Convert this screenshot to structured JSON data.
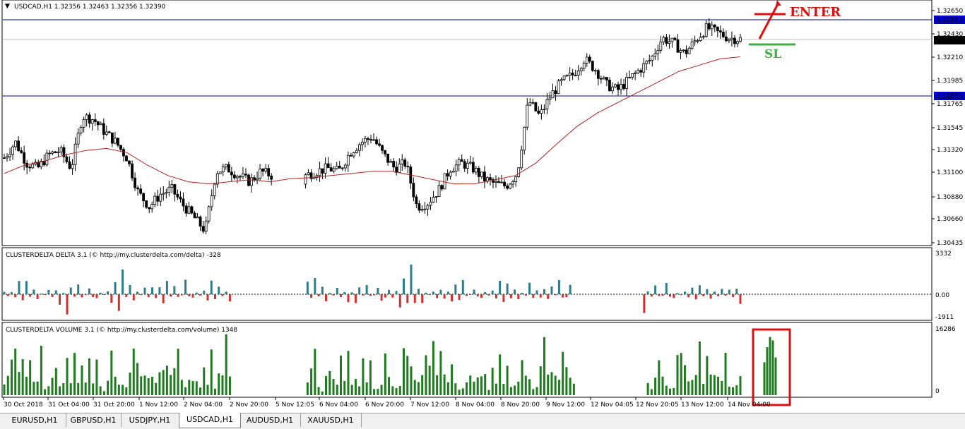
{
  "main": {
    "header": "USDCAD,H1  1.32356 1.32463 1.32356 1.32390",
    "price_labels": [
      "1.32650",
      "1.32430",
      "1.32210",
      "1.31985",
      "1.31765",
      "1.31545",
      "1.31320",
      "1.31100",
      "1.30880",
      "1.30660",
      "1.30435"
    ],
    "marker_labels": {
      "upper": "1.32580",
      "current": "1.32390",
      "lower": "1.31850"
    },
    "annotations": {
      "enter": "ENTER",
      "sl": "SL"
    }
  },
  "delta": {
    "header": "CLUSTERDELTA DELTA 3.1 (© http://my.clusterdelta.com/delta) -328",
    "scale": [
      "3332",
      "0.00",
      "-1911"
    ]
  },
  "volume": {
    "header": "CLUSTERDELTA VOLUME 3.1 (© http://my.clusterdelta.com/volume) 1348",
    "scale": [
      "16286",
      "0"
    ]
  },
  "time_labels": [
    "30 Oct 2018",
    "31 Oct 04:00",
    "31 Oct 20:00",
    "1 Nov 12:00",
    "2 Nov 04:00",
    "2 Nov 20:00",
    "5 Nov 12:05",
    "6 Nov 04:00",
    "6 Nov 20:00",
    "7 Nov 12:00",
    "8 Nov 04:00",
    "8 Nov 20:00",
    "9 Nov 12:00",
    "12 Nov 04:05",
    "12 Nov 20:05",
    "13 Nov 12:00",
    "14 Nov 04:00"
  ],
  "tabs": [
    "EURUSD,H1",
    "GBPUSD,H1",
    "USDJPY,H1",
    "USDCAD,H1",
    "AUDUSD,H1",
    "XAUUSD,H1"
  ],
  "active_tab": "USDCAD,H1",
  "colors": {
    "bull_delta": "#2e7d8c",
    "bear_delta": "#d0312d",
    "volume": "#1e7b1e",
    "ma": "#b22222",
    "enter": "#e01010",
    "sl": "#3cb043",
    "marker_blue": "#0000cc"
  },
  "chart_data": {
    "type": "candlestick",
    "symbol": "USDCAD",
    "timeframe": "H1",
    "last": {
      "open": 1.32356,
      "high": 1.32463,
      "low": 1.32356,
      "close": 1.3239
    },
    "close_path": [
      1.3125,
      1.314,
      1.312,
      1.3115,
      1.3128,
      1.3132,
      1.3115,
      1.3165,
      1.3162,
      1.315,
      1.314,
      1.3125,
      1.3092,
      1.3078,
      1.309,
      1.3095,
      1.308,
      1.3068,
      1.3055,
      1.3112,
      1.3115,
      1.3108,
      1.3102,
      1.3112,
      1.3108,
      1.3102,
      1.3082,
      1.3108,
      1.3112,
      1.3115,
      1.3112,
      1.313,
      1.314,
      1.3145,
      1.3128,
      1.3115,
      1.312,
      1.3078,
      1.3082,
      1.3095,
      1.3115,
      1.312,
      1.3115,
      1.3105,
      1.31,
      1.3098,
      1.311,
      1.318,
      1.3165,
      1.3185,
      1.3198,
      1.3205,
      1.322,
      1.321,
      1.3195,
      1.319,
      1.32,
      1.321,
      1.322,
      1.324,
      1.3235,
      1.3225,
      1.3238,
      1.325,
      1.3245,
      1.324,
      1.3239
    ],
    "moving_average": [
      1.311,
      1.3118,
      1.3122,
      1.3128,
      1.3132,
      1.3134,
      1.313,
      1.3118,
      1.3108,
      1.3102,
      1.31,
      1.3102,
      1.3104,
      1.3102,
      1.3105,
      1.3106,
      1.3108,
      1.311,
      1.3112,
      1.3112,
      1.3108,
      1.3104,
      1.31,
      1.31,
      1.3104,
      1.3108,
      1.312,
      1.3138,
      1.3155,
      1.3168,
      1.3178,
      1.3188,
      1.3198,
      1.3208,
      1.3214,
      1.322,
      1.3222
    ],
    "levels": {
      "enter": 1.3258,
      "stop_loss": 1.3185
    },
    "delta_values": [
      600,
      -300,
      800,
      -1200,
      2900,
      -1500,
      2600,
      -900,
      1400,
      -1800,
      300,
      -400,
      1300,
      -700,
      900,
      -1000,
      600,
      -1900,
      1500,
      -500,
      2200,
      -800,
      -300,
      1300,
      -700,
      -900
    ],
    "volume_values": [
      6500,
      4800,
      9500,
      14200,
      7800,
      12900,
      6400,
      10800,
      5200,
      8400,
      16000,
      4400,
      2400,
      4600,
      8200,
      5600,
      3400,
      9800,
      5200,
      11800,
      3000,
      7200,
      5600,
      16000,
      4800,
      9600,
      3200,
      2800,
      4400,
      12000,
      8200,
      4800,
      3000,
      2400,
      13800,
      14800,
      12000
    ]
  }
}
